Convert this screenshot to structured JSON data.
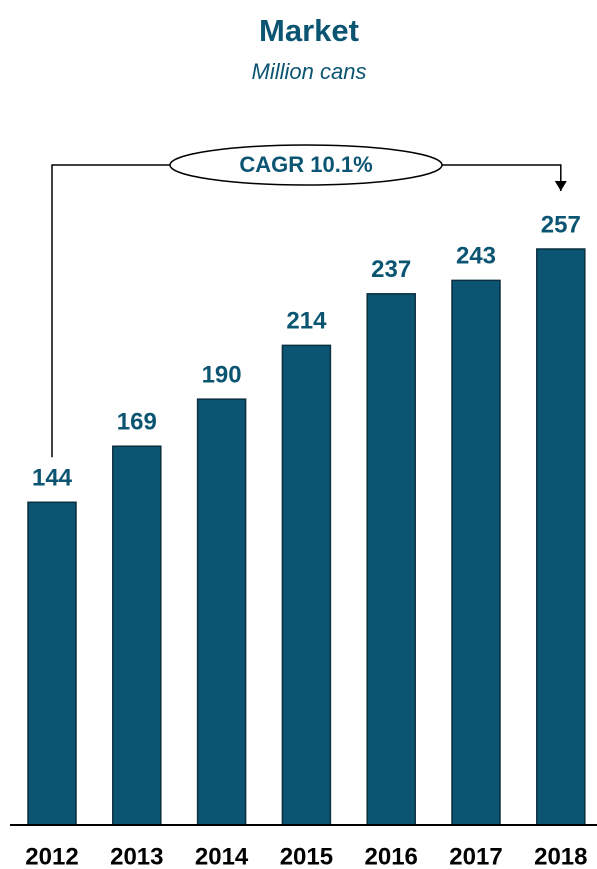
{
  "chart_data": {
    "type": "bar",
    "title": "Market",
    "subtitle": "Million cans",
    "annotation": "CAGR 10.1%",
    "categories": [
      "2012",
      "2013",
      "2014",
      "2015",
      "2016",
      "2017",
      "2018"
    ],
    "values": [
      144,
      169,
      190,
      214,
      237,
      243,
      257
    ],
    "color": "#0b5572"
  }
}
